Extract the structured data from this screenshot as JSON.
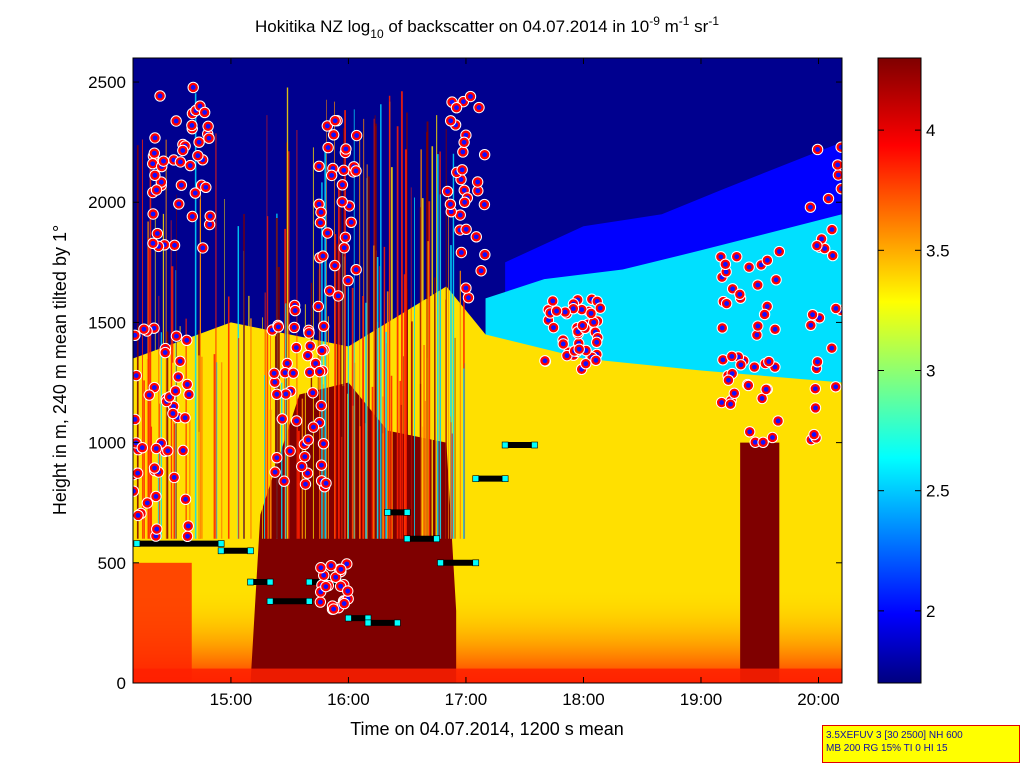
{
  "chart_data": {
    "type": "heatmap",
    "title_parts": [
      "Hokitika NZ log",
      "10",
      " of backscatter on 04.07.2014 in 10",
      "-9",
      " m",
      "-1",
      " sr",
      "-1"
    ],
    "xlabel": "Time on 04.07.2014, 1200 s mean",
    "ylabel": "Height in m, 240 m mean tilted by 1°",
    "xlim": [
      "14:10",
      "20:12"
    ],
    "ylim": [
      0,
      2600
    ],
    "x_ticks": [
      "15:00",
      "16:00",
      "17:00",
      "18:00",
      "19:00",
      "20:00"
    ],
    "y_ticks": [
      0,
      500,
      1000,
      1500,
      2000,
      2500
    ],
    "colorbar": {
      "ticks": [
        2,
        2.5,
        3,
        3.5,
        4
      ],
      "range": [
        1.7,
        4.3
      ],
      "colormap": "jet"
    },
    "cloud_base_points": {
      "marker": "red-filled circle with blue core and white outline",
      "clusters": [
        {
          "time": [
            "14:10",
            "14:40"
          ],
          "height": [
            600,
            1500
          ]
        },
        {
          "time": [
            "14:20",
            "14:50"
          ],
          "height": [
            1800,
            2500
          ]
        },
        {
          "time": [
            "15:20",
            "15:50"
          ],
          "height": [
            800,
            1600
          ]
        },
        {
          "time": [
            "15:45",
            "16:05"
          ],
          "height": [
            1600,
            2350
          ]
        },
        {
          "time": [
            "15:45",
            "16:00"
          ],
          "height": [
            300,
            500
          ]
        },
        {
          "time": [
            "16:50",
            "17:10"
          ],
          "height": [
            1600,
            2500
          ]
        },
        {
          "time": [
            "17:40",
            "18:10"
          ],
          "height": [
            1300,
            1600
          ]
        },
        {
          "time": [
            "19:10",
            "19:40"
          ],
          "height": [
            1000,
            1800
          ]
        },
        {
          "time": [
            "19:55",
            "20:12"
          ],
          "height": [
            1000,
            2250
          ]
        }
      ]
    },
    "mixing_layer_segments": [
      {
        "start": "14:12",
        "end": "14:55",
        "height": 580
      },
      {
        "start": "14:55",
        "end": "15:10",
        "height": 550
      },
      {
        "start": "15:10",
        "end": "15:20",
        "height": 420
      },
      {
        "start": "15:20",
        "end": "15:40",
        "height": 340
      },
      {
        "start": "15:40",
        "end": "15:55",
        "height": 420
      },
      {
        "start": "16:00",
        "end": "16:10",
        "height": 270
      },
      {
        "start": "16:10",
        "end": "16:25",
        "height": 250
      },
      {
        "start": "16:20",
        "end": "16:30",
        "height": 710
      },
      {
        "start": "16:30",
        "end": "16:45",
        "height": 600
      },
      {
        "start": "16:47",
        "end": "17:05",
        "height": 500
      },
      {
        "start": "17:05",
        "end": "17:20",
        "height": 850
      },
      {
        "start": "17:20",
        "end": "17:35",
        "height": 990
      }
    ],
    "colors": {
      "dark_red": "#7f0000",
      "red": "#ff2000",
      "orange": "#ff8c00",
      "yellow": "#ffe000",
      "cyan": "#00e0ff",
      "blue": "#0000ff",
      "dark_blue": "#00008f"
    }
  },
  "info_box": {
    "line1": "3.5XEFUV 3 [30 2500] NH 600",
    "line2": "MB 200 RG 15% TI 0 HI 15"
  }
}
